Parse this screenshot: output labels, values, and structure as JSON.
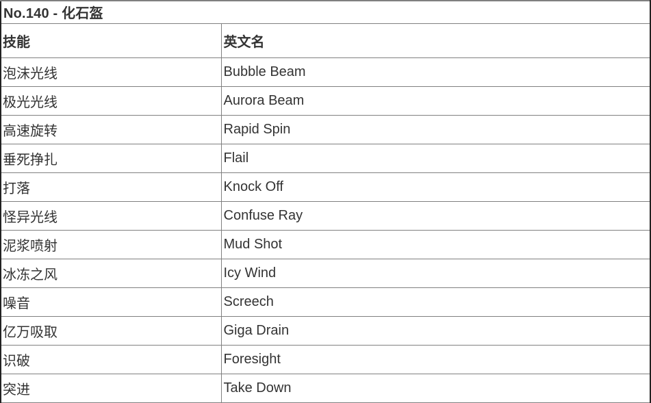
{
  "title": "No.140 - 化石盔",
  "table": {
    "headers": {
      "skill": "技能",
      "english": "英文名"
    },
    "rows": [
      {
        "cn": "泡沫光线",
        "en": "Bubble Beam"
      },
      {
        "cn": "极光光线",
        "en": "Aurora Beam"
      },
      {
        "cn": "高速旋转",
        "en": "Rapid Spin"
      },
      {
        "cn": "垂死挣扎",
        "en": "Flail"
      },
      {
        "cn": "打落",
        "en": "Knock Off"
      },
      {
        "cn": "怪异光线",
        "en": "Confuse Ray"
      },
      {
        "cn": "泥浆喷射",
        "en": "Mud Shot"
      },
      {
        "cn": "冰冻之风",
        "en": "Icy Wind"
      },
      {
        "cn": "噪音",
        "en": "Screech"
      },
      {
        "cn": "亿万吸取",
        "en": "Giga Drain"
      },
      {
        "cn": "识破",
        "en": "Foresight"
      },
      {
        "cn": "突进",
        "en": "Take Down"
      }
    ]
  },
  "colors": {
    "text": "#333333",
    "inner_rule": "#7f7f7f",
    "outer_border": "#222222",
    "background": "#ffffff"
  }
}
